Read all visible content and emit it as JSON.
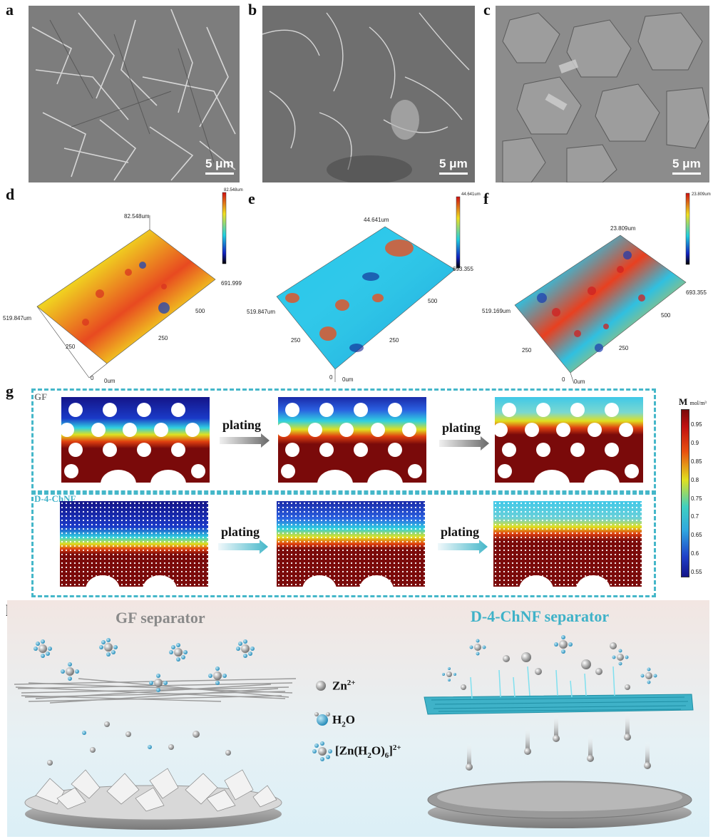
{
  "panel_labels": {
    "a": "a",
    "b": "b",
    "c": "c",
    "d": "d",
    "e": "e",
    "f": "f",
    "g": "g",
    "h": "h"
  },
  "sem": {
    "scale_a": "5 μm",
    "scale_b": "5 μm",
    "scale_c": "5 μm"
  },
  "topography": {
    "d": {
      "peak": "82.548um",
      "x_end": "691.999",
      "y_end": "519.847um",
      "x_mid": "500",
      "x_250": "250",
      "y_250": "250",
      "zero": "0",
      "zero_um": "0um",
      "colorbar_top": "82.548um"
    },
    "e": {
      "peak": "44.641um",
      "x_end": "693.355",
      "y_end": "519.847um",
      "x_mid": "500",
      "x_250": "250",
      "y_250": "250",
      "zero": "0",
      "zero_um": "0um",
      "colorbar_top": "44.641um"
    },
    "f": {
      "peak": "23.809um",
      "x_end": "693.355",
      "y_end": "519.169um",
      "x_mid": "500",
      "x_250": "250",
      "y_250": "250",
      "zero": "0",
      "zero_um": "0um",
      "colorbar_top": "23.809um"
    }
  },
  "simulation": {
    "row1_label": "GF",
    "row2_label": "D-4-ChNF",
    "arrow_text": "plating",
    "colorbar_title": "M",
    "colorbar_unit": "mol/m³",
    "colorbar_ticks": [
      "0.95",
      "0.9",
      "0.85",
      "0.8",
      "0.75",
      "0.7",
      "0.65",
      "0.6",
      "0.55"
    ],
    "colors": {
      "low": "#1a1a8c",
      "mid": "#35c7e8",
      "high": "#7a0a0a",
      "box": "#45b7c9"
    }
  },
  "schematic": {
    "left_title": "GF separator",
    "right_title": "D-4-ChNF separator",
    "legend": {
      "zn_label": "Zn",
      "zn_sup": "2+",
      "h2o_label_pre": "H",
      "h2o_label_sub": "2",
      "h2o_label_post": "O",
      "complex_pre": "[Zn(H",
      "complex_sub1": "2",
      "complex_mid": "O)",
      "complex_sub2": "6",
      "complex_post": "]",
      "complex_sup": "2+"
    },
    "colors": {
      "left_title": "#8a8a8a",
      "right_title": "#3fb2c8"
    }
  }
}
